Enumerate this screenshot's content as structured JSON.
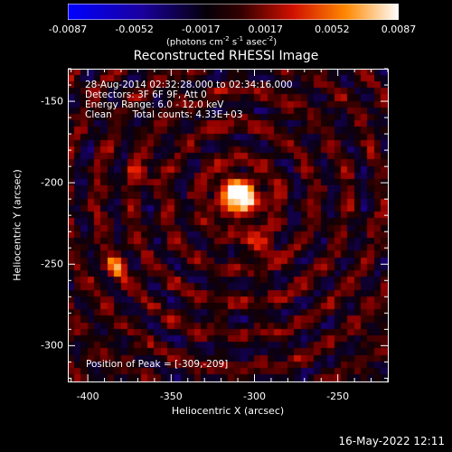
{
  "colorbar": {
    "ticks": [
      "-0.0087",
      "-0.0052",
      "-0.0017",
      "0.0017",
      "0.0052",
      "0.0087"
    ],
    "tick_values": [
      -0.0087,
      -0.0052,
      -0.0017,
      0.0017,
      0.0052,
      0.0087
    ],
    "range": [
      -0.0087,
      0.0087
    ],
    "units_prefix": "(photons cm",
    "units_exp1": "-2",
    "units_mid": " s",
    "units_exp2": "-1",
    "units_mid2": " asec",
    "units_exp3": "-2",
    "units_suffix": ")",
    "colors": [
      "#0000ff",
      "#2000a0",
      "#000000",
      "#b00000",
      "#ff7000",
      "#ffffff"
    ]
  },
  "chart_data": {
    "type": "heatmap",
    "title": "Reconstructed RHESSI Image",
    "xlabel": "Heliocentric X (arcsec)",
    "ylabel": "Heliocentric Y (arcsec)",
    "xlim": [
      -412,
      -220
    ],
    "ylim": [
      -322,
      -130
    ],
    "x_ticks": [
      "-400",
      "-350",
      "-300",
      "-250"
    ],
    "x_tick_values": [
      -400,
      -350,
      -300,
      -250
    ],
    "y_ticks": [
      "-150",
      "-200",
      "-250",
      "-300"
    ],
    "y_tick_values": [
      -150,
      -200,
      -250,
      -300
    ],
    "grid_cells": 48,
    "sources": [
      {
        "x": -309,
        "y": -209,
        "peak": 0.0087
      },
      {
        "x": -382,
        "y": -252,
        "peak": 0.0058
      },
      {
        "x": -297,
        "y": -239,
        "peak": 0.0035
      },
      {
        "x": -365,
        "y": -195,
        "peak": 0.0025
      }
    ],
    "annotations": {
      "time_range": "28-Aug-2014 02:32:28.000 to 02:34:16.000",
      "detectors": "Detectors: 3F 6F 9F, Att 0",
      "energy_range": "Energy Range: 6.0 - 12.0 keV",
      "clean_label": "Clean",
      "total_counts": "Total counts: 4.33E+03",
      "peak_position": "Position of Peak = [-309,-209]"
    }
  },
  "timestamp": "16-May-2022 12:11"
}
